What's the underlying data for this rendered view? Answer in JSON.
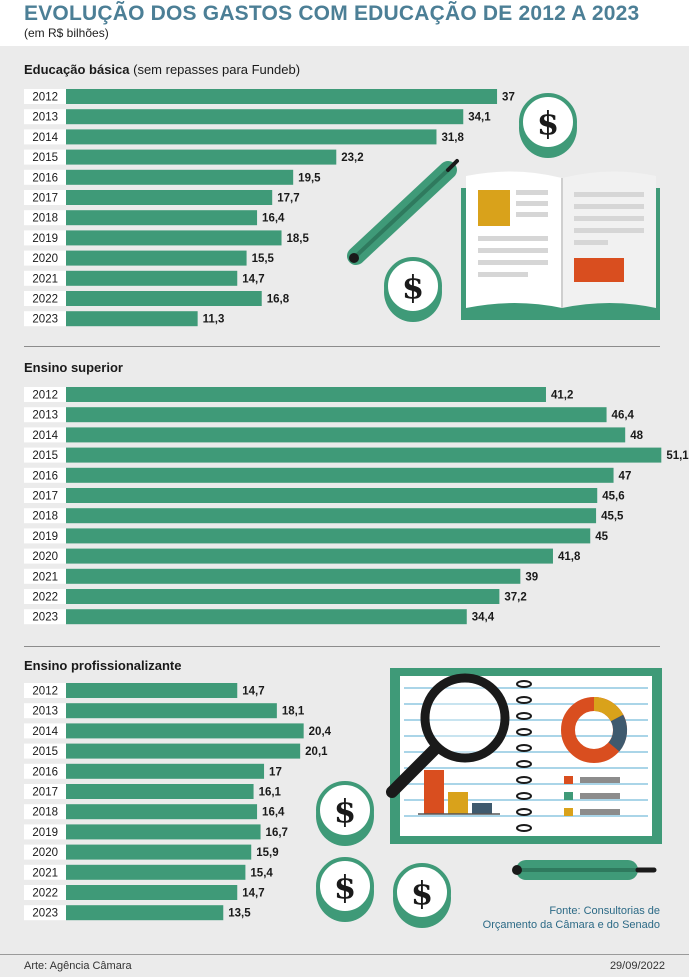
{
  "header": {
    "title": "EVOLUÇÃO DOS GASTOS COM EDUCAÇÃO DE 2012 A 2023",
    "subtitle": "(em R$ bilhões)"
  },
  "chart_data": [
    {
      "type": "bar",
      "orientation": "horizontal",
      "title": "Educação básica",
      "title_note": "(sem repasses para Fundeb)",
      "categories": [
        "2012",
        "2013",
        "2014",
        "2015",
        "2016",
        "2017",
        "2018",
        "2019",
        "2020",
        "2021",
        "2022",
        "2023"
      ],
      "values": [
        37,
        34.1,
        31.8,
        23.2,
        19.5,
        17.7,
        16.4,
        18.5,
        15.5,
        14.7,
        16.8,
        11.3
      ],
      "value_labels": [
        "37",
        "34,1",
        "31,8",
        "23,2",
        "19,5",
        "17,7",
        "16,4",
        "18,5",
        "15,5",
        "14,7",
        "16,8",
        "11,3"
      ],
      "color": "#3f9a78"
    },
    {
      "type": "bar",
      "orientation": "horizontal",
      "title": "Ensino superior",
      "categories": [
        "2012",
        "2013",
        "2014",
        "2015",
        "2016",
        "2017",
        "2018",
        "2019",
        "2020",
        "2021",
        "2022",
        "2023"
      ],
      "values": [
        41.2,
        46.4,
        48,
        51.1,
        47,
        45.6,
        45.5,
        45,
        41.8,
        39,
        37.2,
        34.4
      ],
      "value_labels": [
        "41,2",
        "46,4",
        "48",
        "51,1",
        "47",
        "45,6",
        "45,5",
        "45",
        "41,8",
        "39",
        "37,2",
        "34,4"
      ],
      "color": "#3f9a78"
    },
    {
      "type": "bar",
      "orientation": "horizontal",
      "title": "Ensino profissionalizante",
      "categories": [
        "2012",
        "2013",
        "2014",
        "2015",
        "2016",
        "2017",
        "2018",
        "2019",
        "2020",
        "2021",
        "2022",
        "2023"
      ],
      "values": [
        14.7,
        18.1,
        20.4,
        20.1,
        17,
        16.1,
        16.4,
        16.7,
        15.9,
        15.4,
        14.7,
        13.5
      ],
      "value_labels": [
        "14,7",
        "18,1",
        "20,4",
        "20,1",
        "17",
        "16,1",
        "16,4",
        "16,7",
        "15,9",
        "15,4",
        "14,7",
        "13,5"
      ],
      "color": "#3f9a78"
    }
  ],
  "source": {
    "line1": "Fonte: Consultorias de",
    "line2": "Orçamento da Câmara e do Senado"
  },
  "footer": {
    "credit": "Arte: Agência Câmara",
    "date": "29/09/2022"
  },
  "icons": [
    "dollar-coin-icon",
    "pencil-icon",
    "open-book-icon",
    "notebook-icon",
    "magnifier-icon"
  ],
  "colors": {
    "bar": "#3f9a78",
    "title": "#4c7f96",
    "orange": "#d94e1f",
    "gold": "#d9a21b",
    "slate": "#3f5a6e"
  }
}
